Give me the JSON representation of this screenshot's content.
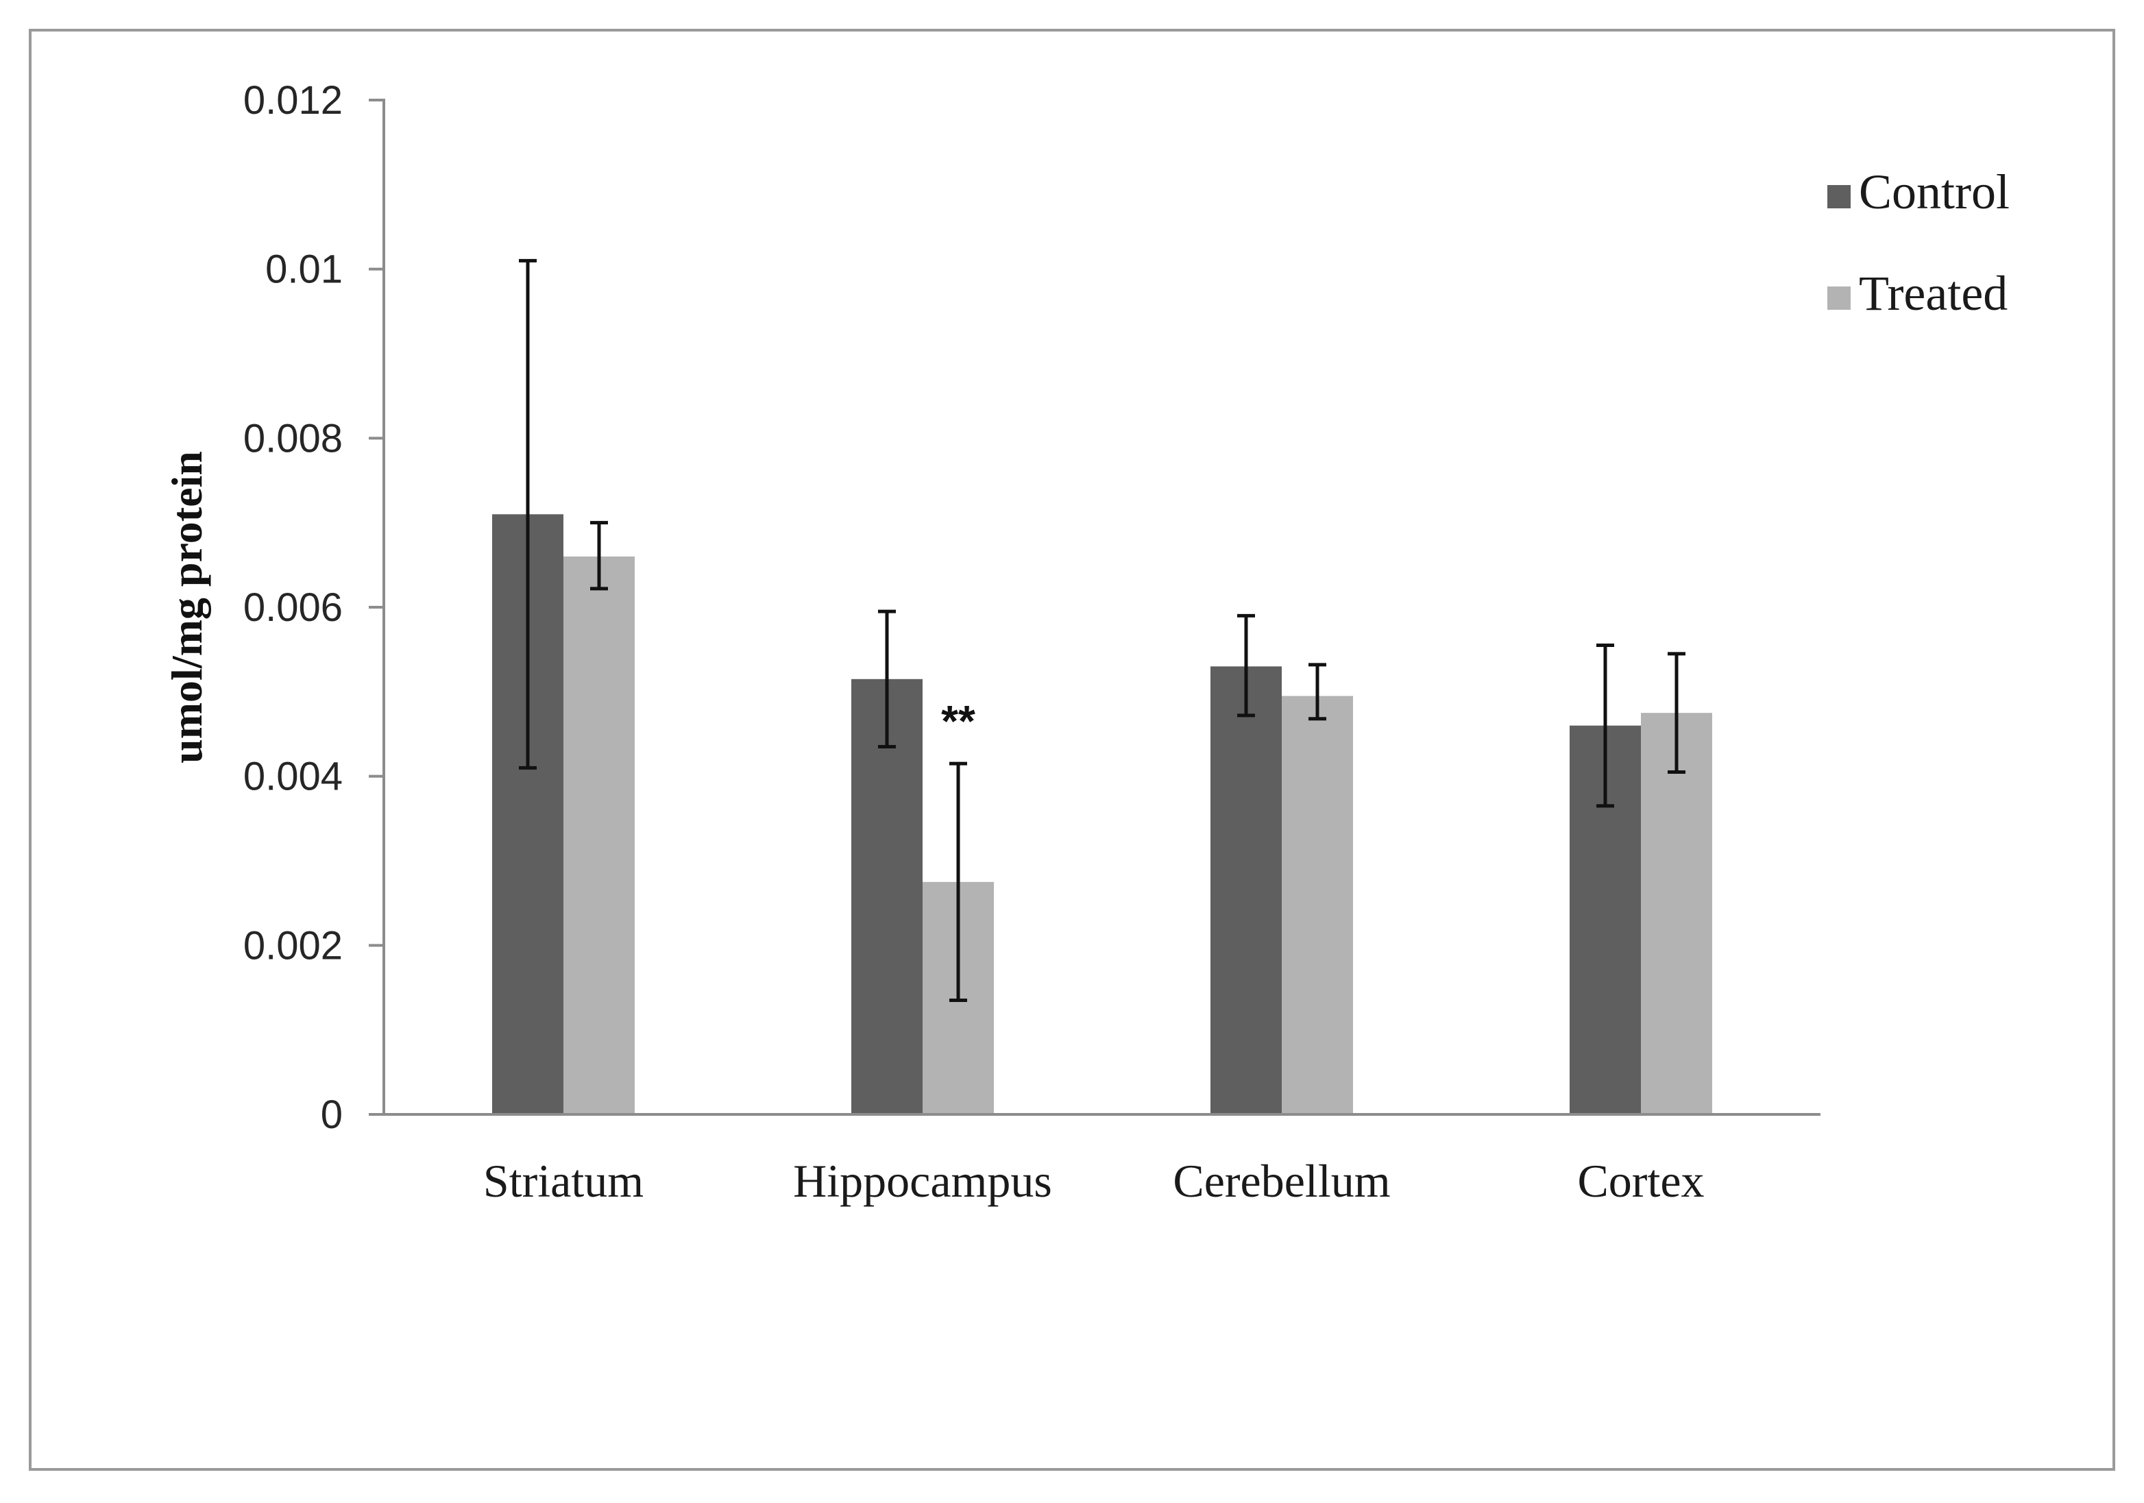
{
  "chart_data": {
    "type": "bar",
    "title": "",
    "xlabel": "",
    "ylabel": "umol/mg protein",
    "ylim": [
      0,
      0.012
    ],
    "yticks": [
      "0",
      "0.002",
      "0.004",
      "0.006",
      "0.008",
      "0.01",
      "0.012"
    ],
    "categories": [
      "Striatum",
      "Hippocampus",
      "Cerebellum",
      "Cortex"
    ],
    "series": [
      {
        "name": "Control",
        "color": "#5f5f5f",
        "values": [
          0.0071,
          0.00515,
          0.0053,
          0.0046
        ],
        "error_low": [
          0.0041,
          0.00435,
          0.00472,
          0.00365
        ],
        "error_high": [
          0.0101,
          0.00595,
          0.0059,
          0.00555
        ]
      },
      {
        "name": "Treated",
        "color": "#b3b3b3",
        "values": [
          0.0066,
          0.00275,
          0.00495,
          0.00475
        ],
        "error_low": [
          0.00622,
          0.00135,
          0.00468,
          0.00405
        ],
        "error_high": [
          0.007,
          0.00415,
          0.00532,
          0.00545
        ]
      }
    ],
    "annotations": [
      {
        "text": "**",
        "category": "Hippocampus",
        "series": "Treated"
      }
    ],
    "legend": {
      "position": "top-right",
      "entries": [
        "Control",
        "Treated"
      ]
    },
    "grid": false
  }
}
